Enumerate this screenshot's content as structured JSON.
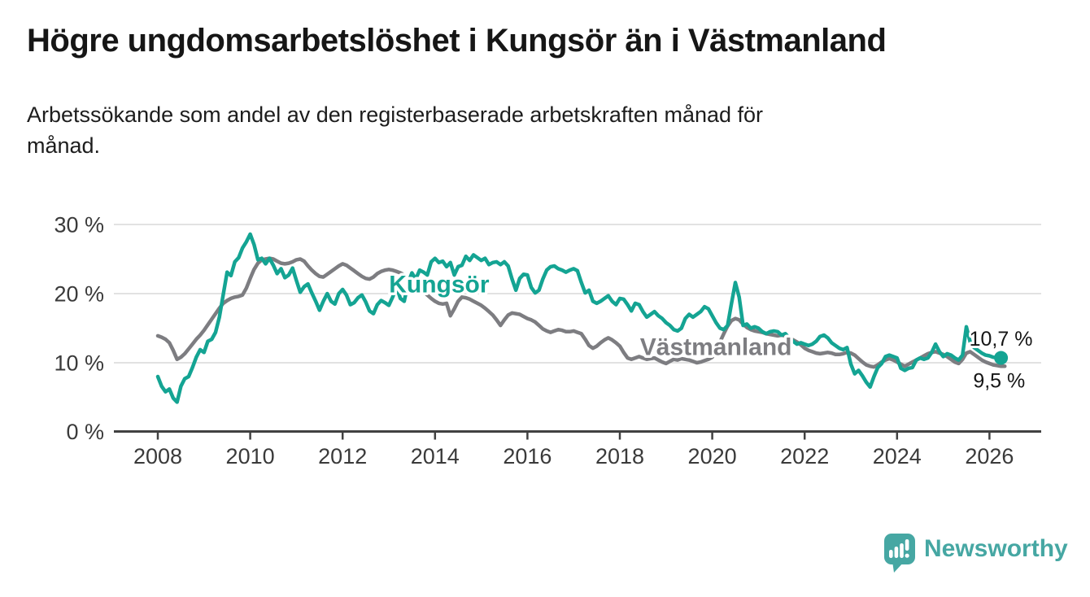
{
  "header": {
    "title": "Högre ungdomsarbetslöshet i Kungsör än i Västmanland",
    "subtitle": "Arbetssökande som andel av den registerbaserade arbetskraften månad för månad."
  },
  "footer": {
    "brand": "Newsworthy"
  },
  "colors": {
    "accent_teal": "#14a493",
    "series_gray": "#7d7d81",
    "grid": "#d9d9d9",
    "axis": "#414141",
    "axis_text": "#3a3a3a",
    "text": "#161616",
    "brand_teal": "#46a7a3"
  },
  "chart_data": {
    "type": "line",
    "title": "Högre ungdomsarbetslöshet i Kungsör än i Västmanland",
    "subtitle": "Arbetssökande som andel av den registerbaserade arbetskraften månad för månad.",
    "unit": "%",
    "grid": true,
    "legend_position": "inline-labels",
    "xlim": [
      2007.05,
      2027.1
    ],
    "ylim": [
      0,
      32
    ],
    "x_tick_years": [
      2008,
      2010,
      2012,
      2014,
      2016,
      2018,
      2020,
      2022,
      2024,
      2026
    ],
    "y_ticks": [
      {
        "value": 0,
        "label": "0 %"
      },
      {
        "value": 10,
        "label": "10 %"
      },
      {
        "value": 20,
        "label": "20 %"
      },
      {
        "value": 30,
        "label": "30 %"
      }
    ],
    "series": [
      {
        "name": "Kungsör",
        "color": "#14a493",
        "end_label": "10,7 %",
        "end_value": 10.7,
        "end_dot": true,
        "line_label": {
          "text": "Kungsör",
          "t": 2014.09,
          "value": 20.2
        },
        "x_start": 2008,
        "x_step_months": 1,
        "values": [
          8.0,
          6.6,
          5.8,
          6.2,
          4.9,
          4.3,
          6.6,
          7.7,
          8.0,
          9.3,
          10.8,
          11.9,
          11.5,
          13.1,
          13.4,
          14.4,
          16.6,
          19.9,
          23.1,
          22.6,
          24.6,
          25.2,
          26.6,
          27.5,
          28.6,
          27.1,
          24.9,
          25.1,
          24.3,
          25.1,
          24.1,
          22.9,
          23.6,
          22.3,
          22.7,
          23.7,
          21.9,
          20.2,
          21.0,
          21.4,
          20.1,
          18.9,
          17.6,
          18.9,
          20.0,
          18.9,
          18.5,
          20.0,
          20.6,
          19.8,
          18.4,
          18.7,
          19.4,
          19.8,
          18.8,
          17.5,
          17.1,
          18.4,
          19.0,
          18.7,
          18.3,
          19.5,
          21.0,
          19.3,
          18.9,
          21.5,
          23.0,
          22.1,
          23.4,
          23.1,
          22.7,
          24.6,
          25.1,
          24.5,
          24.7,
          23.9,
          24.5,
          22.7,
          23.9,
          24.1,
          25.4,
          24.8,
          25.6,
          25.2,
          24.8,
          25.1,
          24.2,
          24.5,
          24.6,
          24.2,
          24.6,
          24.0,
          22.1,
          20.5,
          22.2,
          22.8,
          22.7,
          20.9,
          20.1,
          20.5,
          22.1,
          23.4,
          23.9,
          24.0,
          23.6,
          23.4,
          23.1,
          23.4,
          23.6,
          23.3,
          21.6,
          20.1,
          20.5,
          18.9,
          18.6,
          18.9,
          19.3,
          19.7,
          18.9,
          18.4,
          19.3,
          19.2,
          18.4,
          17.5,
          18.6,
          18.4,
          17.4,
          16.6,
          17.0,
          17.4,
          16.8,
          16.4,
          15.8,
          15.4,
          14.8,
          14.6,
          15.0,
          16.4,
          17.0,
          16.6,
          17.0,
          17.4,
          18.1,
          17.8,
          16.8,
          15.8,
          15.0,
          14.8,
          15.4,
          18.6,
          21.6,
          19.5,
          15.4,
          15.6,
          15.0,
          15.2,
          15.0,
          14.5,
          14.2,
          14.5,
          14.6,
          14.5,
          14.0,
          14.2,
          13.6,
          13.1,
          12.7,
          12.9,
          12.7,
          12.5,
          12.7,
          13.1,
          13.8,
          14.0,
          13.6,
          12.9,
          12.5,
          12.1,
          11.9,
          12.2,
          9.8,
          8.4,
          8.9,
          8.1,
          7.2,
          6.5,
          8.0,
          9.3,
          9.9,
          10.9,
          11.1,
          10.9,
          10.7,
          9.2,
          8.9,
          9.2,
          9.3,
          10.4,
          10.7,
          10.5,
          10.7,
          11.5,
          12.7,
          11.6,
          10.9,
          11.3,
          11.1,
          10.7,
          10.4,
          11.1,
          15.2,
          13.0,
          12.2,
          11.8,
          11.4,
          11.1,
          11.0,
          10.8,
          10.7,
          10.7
        ]
      },
      {
        "name": "Västmanland",
        "color": "#7d7d81",
        "end_label": "9,5 %",
        "end_value": 9.5,
        "end_dot": false,
        "line_label": {
          "text": "Västmanland",
          "t": 2020.08,
          "value": 11.1
        },
        "x_start": 2008,
        "x_step_months": 1,
        "values": [
          13.9,
          13.7,
          13.4,
          12.9,
          11.8,
          10.5,
          10.8,
          11.3,
          12.0,
          12.7,
          13.4,
          14.0,
          14.7,
          15.5,
          16.3,
          17.1,
          17.9,
          18.6,
          19.0,
          19.3,
          19.5,
          19.6,
          19.8,
          20.8,
          22.2,
          23.5,
          24.4,
          24.9,
          25.0,
          25.1,
          25.0,
          24.7,
          24.4,
          24.3,
          24.4,
          24.6,
          24.9,
          25.0,
          24.7,
          24.0,
          23.4,
          22.9,
          22.5,
          22.4,
          22.8,
          23.2,
          23.6,
          24.0,
          24.3,
          24.1,
          23.7,
          23.3,
          22.9,
          22.5,
          22.2,
          22.1,
          22.4,
          22.9,
          23.2,
          23.4,
          23.5,
          23.4,
          23.2,
          23.0,
          22.7,
          22.3,
          21.8,
          21.3,
          20.8,
          20.3,
          19.8,
          19.3,
          18.9,
          18.6,
          18.5,
          18.6,
          16.8,
          17.8,
          18.9,
          19.5,
          19.4,
          19.2,
          18.9,
          18.6,
          18.3,
          17.9,
          17.4,
          16.9,
          16.2,
          15.4,
          16.2,
          16.9,
          17.2,
          17.1,
          17.0,
          16.7,
          16.4,
          16.2,
          15.9,
          15.4,
          14.9,
          14.6,
          14.4,
          14.6,
          14.8,
          14.7,
          14.5,
          14.5,
          14.6,
          14.4,
          14.2,
          13.4,
          12.5,
          12.1,
          12.4,
          12.9,
          13.3,
          13.6,
          13.3,
          12.9,
          12.4,
          11.5,
          10.7,
          10.5,
          10.7,
          10.9,
          10.7,
          10.5,
          10.6,
          10.7,
          10.4,
          10.1,
          9.9,
          10.2,
          10.5,
          10.4,
          10.6,
          10.5,
          10.4,
          10.2,
          10.0,
          10.1,
          10.3,
          10.5,
          10.8,
          11.8,
          13.0,
          14.2,
          15.3,
          16.1,
          16.4,
          16.2,
          15.6,
          15.1,
          14.8,
          14.6,
          14.5,
          14.4,
          14.2,
          14.1,
          14.0,
          13.9,
          14.0,
          13.9,
          13.6,
          13.3,
          13.0,
          12.6,
          12.1,
          11.8,
          11.6,
          11.4,
          11.3,
          11.4,
          11.5,
          11.4,
          11.2,
          11.2,
          11.3,
          11.5,
          11.4,
          11.1,
          10.6,
          10.1,
          9.7,
          9.5,
          9.4,
          9.7,
          10.1,
          10.4,
          10.6,
          10.4,
          10.1,
          9.8,
          9.5,
          9.8,
          10.1,
          10.4,
          10.7,
          11.0,
          11.3,
          11.5,
          11.6,
          11.4,
          11.2,
          10.9,
          10.5,
          10.1,
          9.9,
          10.5,
          11.4,
          11.6,
          11.2,
          10.8,
          10.4,
          10.1,
          9.9,
          9.7,
          9.6,
          9.5,
          9.5
        ]
      }
    ]
  }
}
